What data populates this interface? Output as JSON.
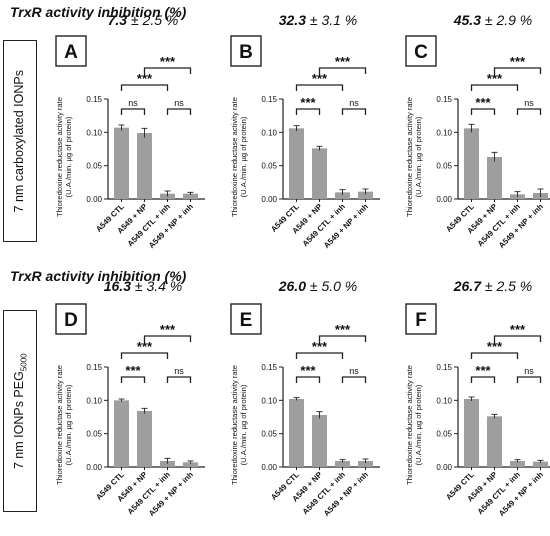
{
  "rows": [
    {
      "label": "TrxR activity inhibition (%)",
      "side_label": "7 nm carboxylated IONPs",
      "side_label_sub": ""
    },
    {
      "label": "TrxR activity inhibition (%)",
      "side_label": "7 nm IONPs PEG",
      "side_label_sub": "5000"
    }
  ],
  "colors": {
    "bar": "#9e9e9e",
    "axis": "#222222",
    "text": "#111111"
  },
  "chart_data": [
    {
      "type": "bar",
      "panel": "A",
      "inhibition_value": "7.3",
      "inhibition_error": "± 2.5 %",
      "ylabel": "Thioredoxine reductase activity rate",
      "ylabel2": "(U.A./min. µg of protein)",
      "ylim": [
        0,
        0.15
      ],
      "yticks": [
        "0.00",
        "0.05",
        "0.10",
        "0.15"
      ],
      "grid": false,
      "categories": [
        "A549 CTL",
        "A549 + NP",
        "A549 CTL + inh",
        "A549 + NP + inh"
      ],
      "values": [
        0.107,
        0.099,
        0.008,
        0.008
      ],
      "errors": [
        0.004,
        0.007,
        0.004,
        0.002
      ],
      "significance": [
        {
          "from": 0,
          "to": 1,
          "label": "ns"
        },
        {
          "from": 2,
          "to": 3,
          "label": "ns"
        },
        {
          "from": 0,
          "to": 2,
          "label": "***"
        },
        {
          "from": 1,
          "to": 3,
          "label": "***"
        }
      ]
    },
    {
      "type": "bar",
      "panel": "B",
      "inhibition_value": "32.3",
      "inhibition_error": "± 3.1 %",
      "ylabel": "Thioredoxine reductase activity rate",
      "ylabel2": "(U.A./min. µg of protein)",
      "ylim": [
        0,
        0.15
      ],
      "yticks": [
        "0.00",
        "0.05",
        "0.10",
        "0.15"
      ],
      "grid": false,
      "categories": [
        "A549 CTL",
        "A549 + NP",
        "A549 CTL + inh",
        "A549 + NP + inh"
      ],
      "values": [
        0.106,
        0.076,
        0.01,
        0.011
      ],
      "errors": [
        0.004,
        0.003,
        0.004,
        0.004
      ],
      "significance": [
        {
          "from": 0,
          "to": 1,
          "label": "***"
        },
        {
          "from": 2,
          "to": 3,
          "label": "ns"
        },
        {
          "from": 0,
          "to": 2,
          "label": "***"
        },
        {
          "from": 1,
          "to": 3,
          "label": "***"
        }
      ]
    },
    {
      "type": "bar",
      "panel": "C",
      "inhibition_value": "45.3",
      "inhibition_error": "± 2.9 %",
      "ylabel": "Thioredoxine reductase activity rate",
      "ylabel2": "(U.A./min. µg of protein)",
      "ylim": [
        0,
        0.15
      ],
      "yticks": [
        "0.00",
        "0.05",
        "0.10",
        "0.15"
      ],
      "grid": false,
      "categories": [
        "A549 CTL",
        "A549 + NP",
        "A549 CTL + inh",
        "A549 + NP + inh"
      ],
      "values": [
        0.106,
        0.063,
        0.007,
        0.009
      ],
      "errors": [
        0.006,
        0.007,
        0.004,
        0.006
      ],
      "significance": [
        {
          "from": 0,
          "to": 1,
          "label": "***"
        },
        {
          "from": 2,
          "to": 3,
          "label": "ns"
        },
        {
          "from": 0,
          "to": 2,
          "label": "***"
        },
        {
          "from": 1,
          "to": 3,
          "label": "***"
        }
      ]
    },
    {
      "type": "bar",
      "panel": "D",
      "inhibition_value": "16.3",
      "inhibition_error": "± 3.4 %",
      "ylabel": "Thioredoxine reductase activity rate",
      "ylabel2": "(U.A./min. µg of protein)",
      "ylim": [
        0,
        0.15
      ],
      "yticks": [
        "0.00",
        "0.05",
        "0.10",
        "0.15"
      ],
      "grid": false,
      "categories": [
        "A549 CTL",
        "A549 + NP",
        "A549 CTL + inh",
        "A549 + NP + inh"
      ],
      "values": [
        0.1,
        0.084,
        0.009,
        0.007
      ],
      "errors": [
        0.002,
        0.004,
        0.004,
        0.002
      ],
      "significance": [
        {
          "from": 0,
          "to": 1,
          "label": "***"
        },
        {
          "from": 2,
          "to": 3,
          "label": "ns"
        },
        {
          "from": 0,
          "to": 2,
          "label": "***"
        },
        {
          "from": 1,
          "to": 3,
          "label": "***"
        }
      ]
    },
    {
      "type": "bar",
      "panel": "E",
      "inhibition_value": "26.0",
      "inhibition_error": "± 5.0 %",
      "ylabel": "Thioredoxine reductase activity rate",
      "ylabel2": "(U.A./min. µg of protein)",
      "ylim": [
        0,
        0.15
      ],
      "yticks": [
        "0.00",
        "0.05",
        "0.10",
        "0.15"
      ],
      "grid": false,
      "categories": [
        "A549 CTL",
        "A549 + NP",
        "A549 CTL + inh",
        "A549 + NP + inh"
      ],
      "values": [
        0.102,
        0.078,
        0.009,
        0.009
      ],
      "errors": [
        0.002,
        0.005,
        0.002,
        0.003
      ],
      "significance": [
        {
          "from": 0,
          "to": 1,
          "label": "***"
        },
        {
          "from": 2,
          "to": 3,
          "label": "ns"
        },
        {
          "from": 0,
          "to": 2,
          "label": "***"
        },
        {
          "from": 1,
          "to": 3,
          "label": "***"
        }
      ]
    },
    {
      "type": "bar",
      "panel": "F",
      "inhibition_value": "26.7",
      "inhibition_error": "± 2.5 %",
      "ylabel": "Thioredoxine reductase activity rate",
      "ylabel2": "(U.A./min. µg of protein)",
      "ylim": [
        0,
        0.15
      ],
      "yticks": [
        "0.00",
        "0.05",
        "0.10",
        "0.15"
      ],
      "grid": false,
      "categories": [
        "A549 CTL",
        "A549 + NP",
        "A549 CTL + inh",
        "A549 + NP + inh"
      ],
      "values": [
        0.102,
        0.076,
        0.009,
        0.008
      ],
      "errors": [
        0.003,
        0.003,
        0.002,
        0.002
      ],
      "significance": [
        {
          "from": 0,
          "to": 1,
          "label": "***"
        },
        {
          "from": 2,
          "to": 3,
          "label": "ns"
        },
        {
          "from": 0,
          "to": 2,
          "label": "***"
        },
        {
          "from": 1,
          "to": 3,
          "label": "***"
        }
      ]
    }
  ]
}
